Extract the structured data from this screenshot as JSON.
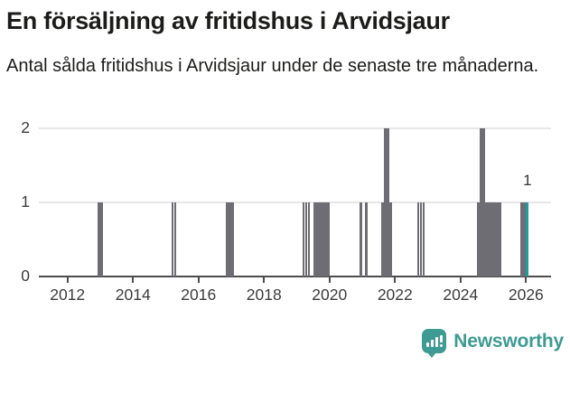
{
  "chart_data": {
    "type": "bar",
    "title": "En försäljning av fritidshus i Arvidsjaur",
    "subtitle": "Antal sålda fritidshus i Arvidsjaur under de senaste tre månaderna.",
    "bar_color": "#6e6d74",
    "grid": true,
    "legend": false,
    "x_axis": {
      "tick_years": [
        2012,
        2014,
        2016,
        2018,
        2020,
        2022,
        2024,
        2026
      ],
      "range": [
        2011.1,
        2026.8
      ],
      "unit": "year (monthly bars)"
    },
    "y_axis": {
      "ticks": [
        0,
        1,
        2
      ],
      "range": [
        0,
        2
      ]
    },
    "points": [
      {
        "month": "2012-12",
        "value": 1
      },
      {
        "month": "2013-01",
        "value": 1
      },
      {
        "month": "2015-03",
        "value": 1
      },
      {
        "month": "2015-04",
        "value": 1
      },
      {
        "month": "2016-11",
        "value": 1
      },
      {
        "month": "2016-12",
        "value": 1
      },
      {
        "month": "2017-01",
        "value": 1
      },
      {
        "month": "2019-03",
        "value": 1
      },
      {
        "month": "2019-04",
        "value": 1
      },
      {
        "month": "2019-05",
        "value": 1
      },
      {
        "month": "2019-07",
        "value": 1
      },
      {
        "month": "2019-08",
        "value": 1
      },
      {
        "month": "2019-09",
        "value": 1
      },
      {
        "month": "2019-10",
        "value": 1
      },
      {
        "month": "2019-11",
        "value": 1
      },
      {
        "month": "2019-12",
        "value": 1
      },
      {
        "month": "2020-12",
        "value": 1
      },
      {
        "month": "2021-02",
        "value": 1
      },
      {
        "month": "2021-08",
        "value": 1
      },
      {
        "month": "2021-09",
        "value": 2
      },
      {
        "month": "2021-10",
        "value": 2
      },
      {
        "month": "2021-11",
        "value": 1
      },
      {
        "month": "2022-09",
        "value": 1
      },
      {
        "month": "2022-10",
        "value": 1
      },
      {
        "month": "2022-11",
        "value": 1
      },
      {
        "month": "2024-07",
        "value": 1
      },
      {
        "month": "2024-08",
        "value": 2
      },
      {
        "month": "2024-09",
        "value": 2
      },
      {
        "month": "2024-10",
        "value": 1
      },
      {
        "month": "2024-11",
        "value": 1
      },
      {
        "month": "2024-12",
        "value": 1
      },
      {
        "month": "2025-01",
        "value": 1
      },
      {
        "month": "2025-02",
        "value": 1
      },
      {
        "month": "2025-03",
        "value": 1
      },
      {
        "month": "2025-11",
        "value": 1
      },
      {
        "month": "2025-12",
        "value": 1
      },
      {
        "month": "2026-01",
        "value": 1
      }
    ],
    "highlight": {
      "month": "2026-01",
      "value": 1,
      "label": "1",
      "color": "#189e9e"
    }
  },
  "footer": {
    "brand": "Newsworthy",
    "brand_color": "#3d9b93"
  }
}
